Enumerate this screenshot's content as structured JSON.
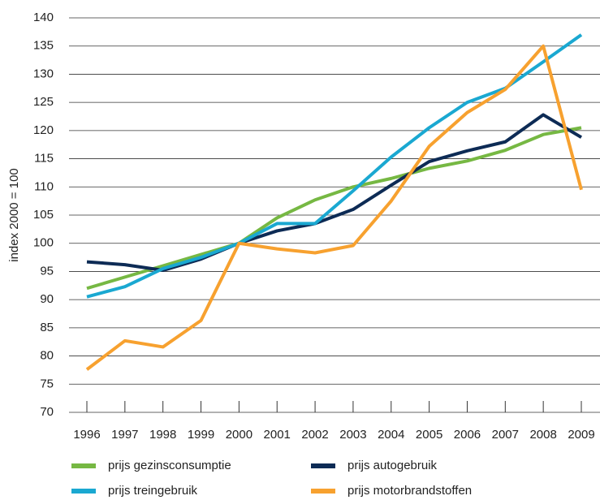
{
  "chart_data": {
    "type": "line",
    "y_label": "index 2000 = 100",
    "categories": [
      "1996",
      "1997",
      "1998",
      "1999",
      "2000",
      "2001",
      "2002",
      "2003",
      "2004",
      "2005",
      "2006",
      "2007",
      "2008",
      "2009"
    ],
    "series": [
      {
        "name": "prijs gezinsconsumptie",
        "color": "#76b843",
        "values": [
          92,
          94,
          96,
          98,
          100,
          104.5,
          107.7,
          110,
          111.5,
          113.3,
          114.6,
          116.5,
          119.3,
          120.5
        ]
      },
      {
        "name": "prijs autogebruik",
        "color": "#0d2b55",
        "values": [
          96.7,
          96.2,
          95.2,
          97.2,
          100,
          102.2,
          103.5,
          106,
          110.3,
          114.5,
          116.4,
          118,
          122.8,
          118.8
        ]
      },
      {
        "name": "prijs treingebruik",
        "color": "#1aa8d1",
        "values": [
          90.5,
          92.3,
          95.5,
          97.5,
          100,
          103.5,
          103.5,
          109.3,
          115.3,
          120.5,
          125,
          127.5,
          132.2,
          137
        ]
      },
      {
        "name": "prijs motorbrandstoffen",
        "color": "#f7a12f",
        "values": [
          77.6,
          82.7,
          81.6,
          86.3,
          100,
          99,
          98.3,
          99.6,
          107.5,
          117.2,
          123.2,
          127.3,
          135,
          109.5
        ]
      }
    ],
    "ylim": [
      70,
      140
    ],
    "yticks": [
      70,
      75,
      80,
      85,
      90,
      95,
      100,
      105,
      110,
      115,
      120,
      125,
      130,
      135,
      140
    ],
    "grid": true
  }
}
